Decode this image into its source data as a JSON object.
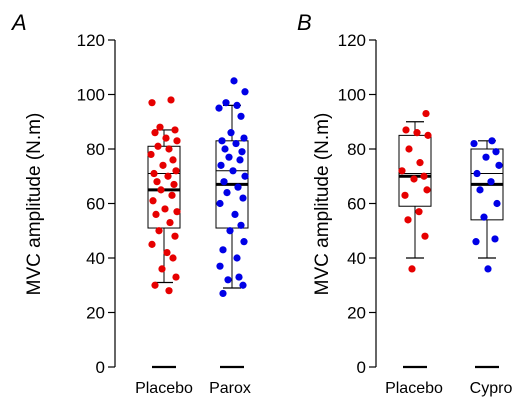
{
  "chart_data": [
    {
      "type": "box-scatter",
      "panel_label": "A",
      "ylabel": "MVC amplitude (N.m)",
      "ylim": [
        0,
        120
      ],
      "yticks": [
        0,
        20,
        40,
        60,
        80,
        100,
        120
      ],
      "grid": false,
      "categories": [
        "Placebo",
        "Parox"
      ],
      "series": [
        {
          "name": "Placebo",
          "color": "#e60000",
          "box": {
            "min": 31,
            "q1": 51,
            "mean": 71,
            "median": 65,
            "q3": 81,
            "max": 87
          },
          "points": [
            97,
            98,
            88,
            87,
            86,
            84,
            83,
            81,
            80,
            78,
            76,
            74,
            72,
            71,
            70,
            68,
            67,
            65,
            63,
            61,
            58,
            57,
            56,
            53,
            50,
            48,
            45,
            42,
            40,
            36,
            33,
            30,
            28
          ]
        },
        {
          "name": "Parox",
          "color": "#0000e6",
          "box": {
            "min": 29,
            "q1": 51,
            "mean": 72,
            "median": 67,
            "q3": 83,
            "max": 96
          },
          "points": [
            105,
            101,
            97,
            96,
            95,
            92,
            86,
            84,
            83,
            82,
            80,
            79,
            77,
            76,
            74,
            72,
            70,
            68,
            66,
            64,
            62,
            60,
            56,
            52,
            50,
            46,
            43,
            40,
            37,
            33,
            32,
            30,
            27
          ]
        }
      ]
    },
    {
      "type": "box-scatter",
      "panel_label": "B",
      "ylabel": "MVC amplitude (N.m)",
      "ylim": [
        0,
        120
      ],
      "yticks": [
        0,
        20,
        40,
        60,
        80,
        100,
        120
      ],
      "grid": false,
      "categories": [
        "Placebo",
        "Cypro"
      ],
      "series": [
        {
          "name": "Placebo",
          "color": "#e60000",
          "box": {
            "min": 40,
            "q1": 59,
            "mean": 71,
            "median": 70,
            "q3": 85,
            "max": 90
          },
          "points": [
            93,
            87,
            86,
            85,
            80,
            75,
            72,
            70,
            69,
            65,
            63,
            57,
            54,
            48,
            36
          ]
        },
        {
          "name": "Cypro",
          "color": "#0000e6",
          "box": {
            "min": 40,
            "q1": 54,
            "mean": 71,
            "median": 67,
            "q3": 80,
            "max": 83
          },
          "points": [
            83,
            82,
            79,
            77,
            74,
            71,
            68,
            65,
            60,
            55,
            47,
            46,
            36
          ]
        }
      ]
    }
  ]
}
